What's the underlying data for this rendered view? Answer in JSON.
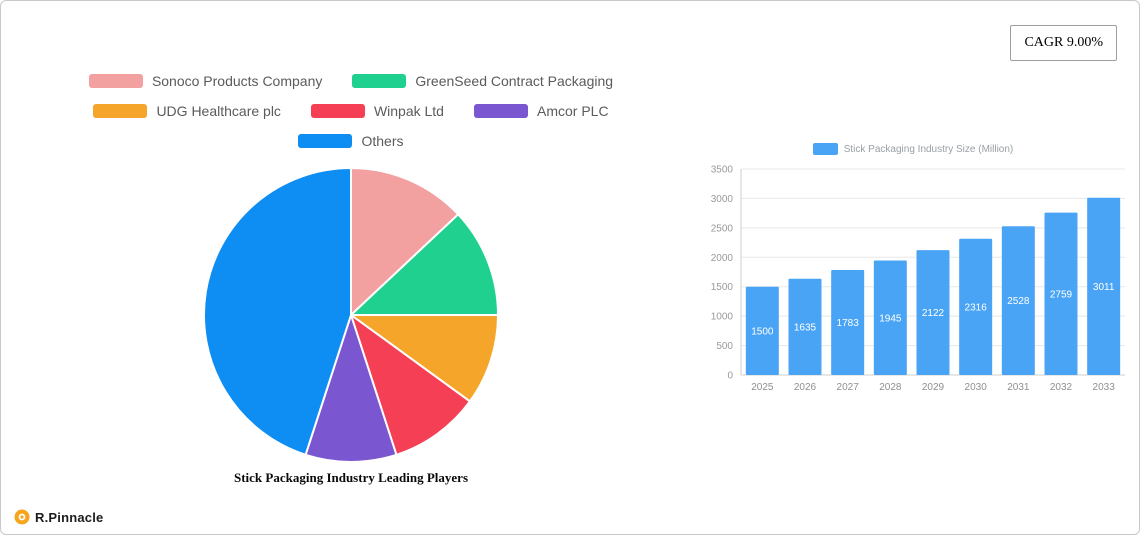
{
  "header": {
    "cagr_badge": "CAGR 9.00%"
  },
  "footer": {
    "brand_name": "R.Pinnacle"
  },
  "chart_data": [
    {
      "type": "pie",
      "title": "Stick Packaging Industry Leading Players",
      "labels": [
        "Sonoco Products Company",
        "GreenSeed Contract Packaging",
        "UDG Healthcare plc",
        "Winpak Ltd",
        "Amcor PLC",
        "Others"
      ],
      "values": [
        13,
        12,
        10,
        10,
        10,
        45
      ],
      "colors": [
        "#f2a0a0",
        "#1fd08f",
        "#f6a52b",
        "#f43f55",
        "#7a57d1",
        "#0e8ef3"
      ],
      "legend_position": "top"
    },
    {
      "type": "bar",
      "legend": "Stick Packaging Industry Size (Million)",
      "categories": [
        "2025",
        "2026",
        "2027",
        "2028",
        "2029",
        "2030",
        "2031",
        "2032",
        "2033"
      ],
      "values": [
        1500,
        1635,
        1783,
        1945,
        2122,
        2316,
        2528,
        2759,
        3011
      ],
      "ylim": [
        0,
        3500
      ],
      "yticks": [
        0,
        500,
        1000,
        1500,
        2000,
        2500,
        3000,
        3500
      ],
      "bar_color": "#4aa4f5",
      "grid": true,
      "legend_position": "top",
      "value_labels": "inside-white"
    }
  ]
}
